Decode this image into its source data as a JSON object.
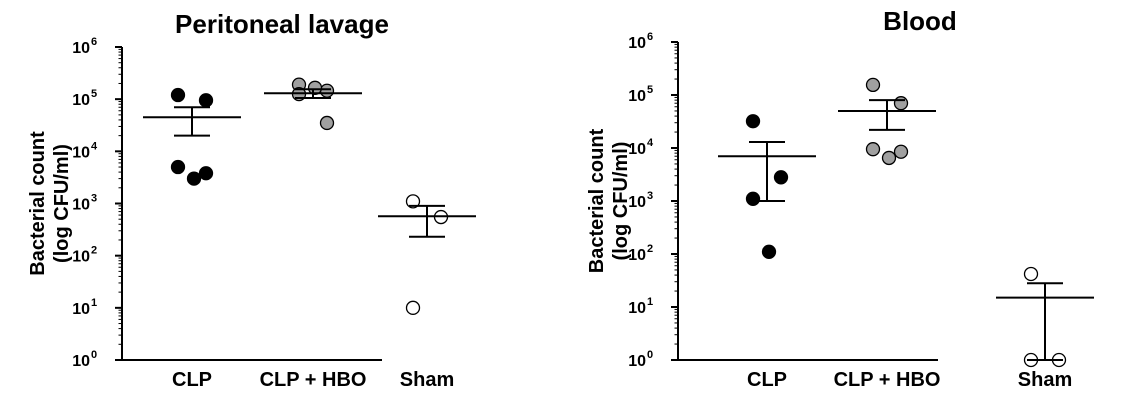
{
  "chart_data": [
    {
      "type": "scatter",
      "title": "Peritoneal lavage",
      "ylabel_line1": "Bacterial count",
      "ylabel_line2": "(log CFU/ml)",
      "yscale": "log",
      "ylim": [
        1,
        1000000
      ],
      "yticks": [
        {
          "base": "10",
          "exp": "6",
          "value": 1000000
        },
        {
          "base": "10",
          "exp": "5",
          "value": 100000
        },
        {
          "base": "10",
          "exp": "4",
          "value": 10000
        },
        {
          "base": "10",
          "exp": "3",
          "value": 1000
        },
        {
          "base": "10",
          "exp": "2",
          "value": 100
        },
        {
          "base": "10",
          "exp": "1",
          "value": 10
        },
        {
          "base": "10",
          "exp": "0",
          "value": 1
        }
      ],
      "categories": [
        "CLP",
        "CLP + HBO",
        "Sham"
      ],
      "groups": [
        {
          "marker_fill": "#000000",
          "points": [
            120000,
            95000,
            5000,
            3000,
            3800
          ],
          "mean": 45000,
          "sem_upper": 70000,
          "sem_lower": 20000
        },
        {
          "marker_fill": "#a0a0a0",
          "points": [
            190000,
            145000,
            125000,
            165000,
            35000
          ],
          "mean": 130000,
          "sem_upper": 155000,
          "sem_lower": 105000
        },
        {
          "marker_fill": "#ffffff",
          "points": [
            1100,
            550,
            10
          ],
          "mean": 570,
          "sem_upper": 900,
          "sem_lower": 230
        }
      ]
    },
    {
      "type": "scatter",
      "title": "Blood",
      "ylabel_line1": "Bacterial count",
      "ylabel_line2": "(log CFU/ml)",
      "yscale": "log",
      "ylim": [
        1,
        1000000
      ],
      "yticks": [
        {
          "base": "10",
          "exp": "6",
          "value": 1000000
        },
        {
          "base": "10",
          "exp": "5",
          "value": 100000
        },
        {
          "base": "10",
          "exp": "4",
          "value": 10000
        },
        {
          "base": "10",
          "exp": "3",
          "value": 1000
        },
        {
          "base": "10",
          "exp": "2",
          "value": 100
        },
        {
          "base": "10",
          "exp": "1",
          "value": 10
        },
        {
          "base": "10",
          "exp": "0",
          "value": 1
        }
      ],
      "categories": [
        "CLP",
        "CLP + HBO",
        "Sham"
      ],
      "groups": [
        {
          "marker_fill": "#000000",
          "points": [
            32000,
            2800,
            1100,
            110
          ],
          "mean": 7000,
          "sem_upper": 13000,
          "sem_lower": 1000
        },
        {
          "marker_fill": "#a0a0a0",
          "points": [
            155000,
            70000,
            9500,
            6500,
            8500
          ],
          "mean": 50000,
          "sem_upper": 80000,
          "sem_lower": 22000
        },
        {
          "marker_fill": "#ffffff",
          "points": [
            42,
            1,
            1
          ],
          "mean": 15,
          "sem_upper": 28,
          "sem_lower": 1
        }
      ]
    }
  ]
}
